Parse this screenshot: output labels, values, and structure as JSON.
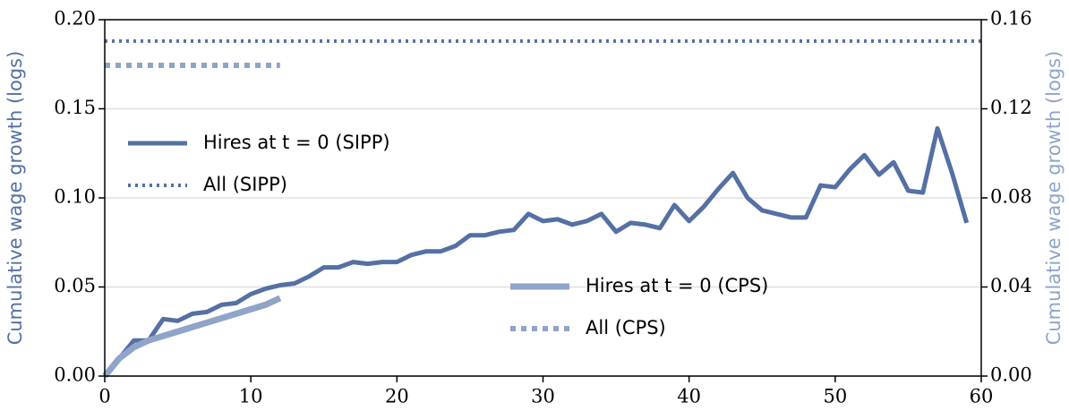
{
  "chart_data": {
    "type": "line",
    "y_label": "Cumulative wage growth (logs)",
    "y2_label": "Cumulative wage growth (logs)",
    "y_label_color": "#5470a4",
    "y2_label_color": "#8ea4c8",
    "xlim": [
      0,
      60
    ],
    "xticks": [
      0,
      10,
      20,
      30,
      40,
      50,
      60
    ],
    "ylim": [
      0,
      0.2
    ],
    "yticks": [
      {
        "value": 0,
        "label": "0.00"
      },
      {
        "value": 0.05,
        "label": "0.05"
      },
      {
        "value": 0.1,
        "label": "0.10"
      },
      {
        "value": 0.15,
        "label": "0.15"
      },
      {
        "value": 0.2,
        "label": "0.20"
      }
    ],
    "y2lim": [
      0,
      0.16
    ],
    "y2ticks": [
      {
        "value": 0,
        "label": "0.00"
      },
      {
        "value": 0.04,
        "label": "0.04"
      },
      {
        "value": 0.08,
        "label": "0.08"
      },
      {
        "value": 0.12,
        "label": "0.12"
      },
      {
        "value": 0.16,
        "label": "0.16"
      }
    ],
    "grid": true,
    "series": [
      {
        "name": "Hires at t = 0 (SIPP)",
        "color": "#5470a4",
        "linestyle": "solid",
        "width": 5,
        "x": [
          0,
          1,
          2,
          3,
          4,
          5,
          6,
          7,
          8,
          9,
          10,
          11,
          12,
          13,
          14,
          15,
          16,
          17,
          18,
          19,
          20,
          21,
          22,
          23,
          24,
          25,
          26,
          27,
          28,
          29,
          30,
          31,
          32,
          33,
          34,
          35,
          36,
          37,
          38,
          39,
          40,
          41,
          42,
          43,
          44,
          45,
          46,
          47,
          48,
          49,
          50,
          51,
          52,
          53,
          54,
          55,
          56,
          57,
          58,
          59
        ],
        "values": [
          0,
          0.01,
          0.02,
          0.02,
          0.032,
          0.031,
          0.035,
          0.036,
          0.04,
          0.041,
          0.046,
          0.049,
          0.051,
          0.052,
          0.056,
          0.061,
          0.061,
          0.064,
          0.063,
          0.064,
          0.064,
          0.068,
          0.07,
          0.07,
          0.073,
          0.079,
          0.079,
          0.081,
          0.082,
          0.091,
          0.087,
          0.088,
          0.085,
          0.087,
          0.091,
          0.081,
          0.086,
          0.085,
          0.083,
          0.096,
          0.087,
          0.095,
          0.105,
          0.114,
          0.1,
          0.093,
          0.091,
          0.089,
          0.089,
          0.107,
          0.106,
          0.116,
          0.124,
          0.113,
          0.12,
          0.104,
          0.103,
          0.139,
          0.114,
          0.086
        ]
      },
      {
        "name": "All (SIPP)",
        "color": "#5470a4",
        "linestyle": "dotted",
        "width": 4,
        "x": [
          0,
          60
        ],
        "values": [
          0.188,
          0.188
        ]
      },
      {
        "name": "Hires at t = 0 (CPS)",
        "color": "#8ea4c8",
        "linestyle": "solid",
        "width": 7,
        "axis": "y2",
        "x": [
          0,
          1,
          2,
          3,
          4,
          5,
          6,
          7,
          8,
          9,
          10,
          11,
          12
        ],
        "values": [
          0,
          0.008,
          0.013,
          0.016,
          0.018,
          0.02,
          0.022,
          0.024,
          0.026,
          0.028,
          0.03,
          0.032,
          0.035
        ]
      },
      {
        "name": "All (CPS)",
        "color": "#8ea4c8",
        "linestyle": "dotted",
        "width": 6,
        "axis": "y2",
        "x": [
          0,
          12
        ],
        "values": [
          0.1395,
          0.1395
        ]
      }
    ]
  }
}
